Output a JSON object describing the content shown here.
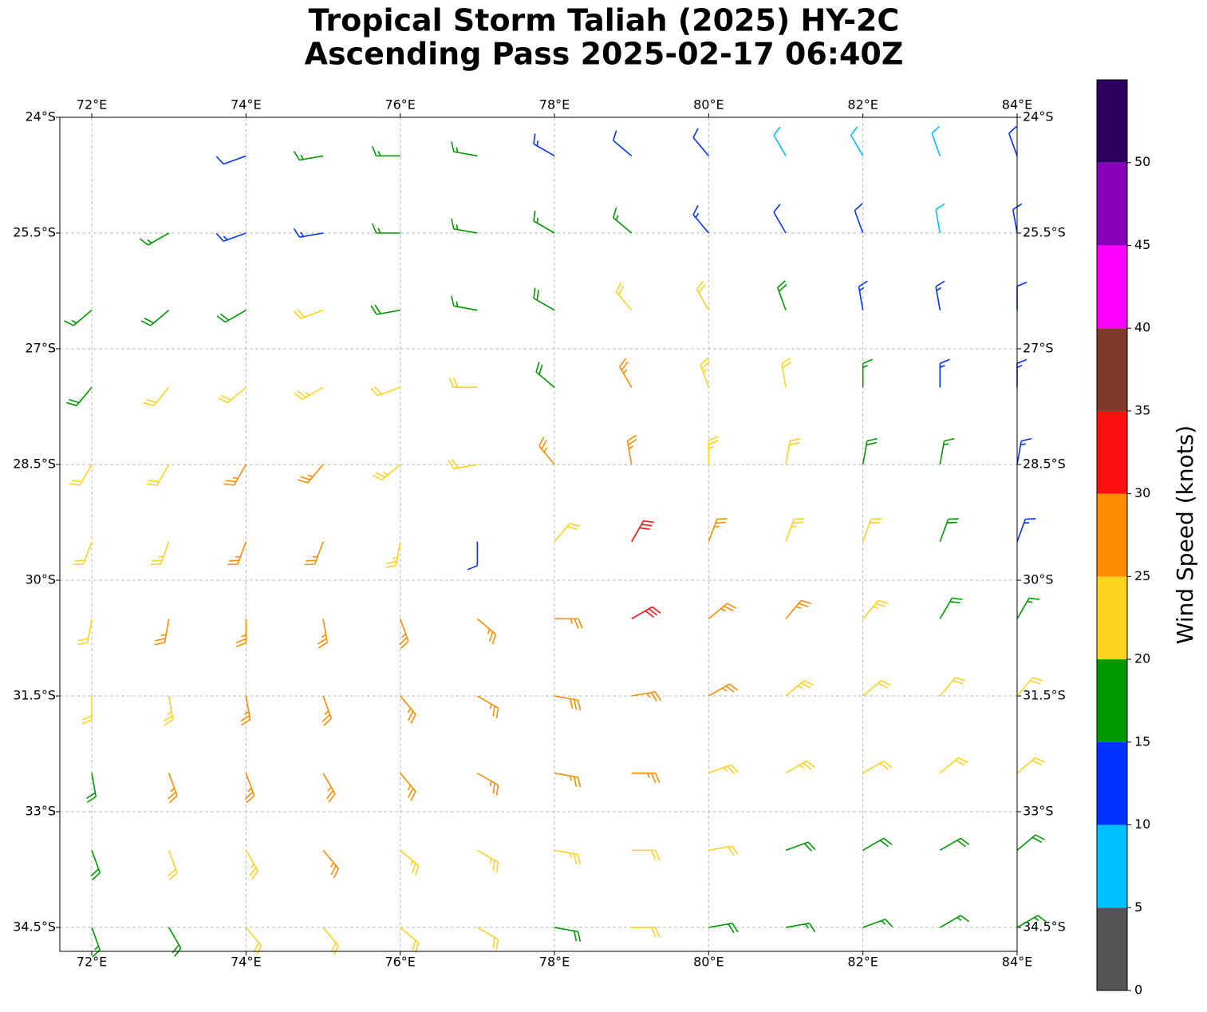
{
  "chart_data": {
    "type": "barbs",
    "title": [
      "Tropical Storm Taliah (2025) HY-2C",
      "Ascending Pass 2025-02-17 06:40Z"
    ],
    "xlim": [
      71.586,
      84
    ],
    "ylim": [
      -34.81,
      -24
    ],
    "xticks": [
      {
        "value": 72,
        "label": "72°E"
      },
      {
        "value": 74,
        "label": "74°E"
      },
      {
        "value": 76,
        "label": "76°E"
      },
      {
        "value": 78,
        "label": "78°E"
      },
      {
        "value": 80,
        "label": "80°E"
      },
      {
        "value": 82,
        "label": "82°E"
      },
      {
        "value": 84,
        "label": "84°E"
      }
    ],
    "yticks": [
      {
        "value": -24,
        "label": "24°S"
      },
      {
        "value": -25.5,
        "label": "25.5°S"
      },
      {
        "value": -27,
        "label": "27°S"
      },
      {
        "value": -28.5,
        "label": "28.5°S"
      },
      {
        "value": -30,
        "label": "30°S"
      },
      {
        "value": -31.5,
        "label": "31.5°S"
      },
      {
        "value": -33,
        "label": "33°S"
      },
      {
        "value": -34.5,
        "label": "34.5°S"
      }
    ],
    "grid": true,
    "lons": [
      72,
      73,
      74,
      75,
      76,
      77,
      78,
      79,
      80,
      81,
      82,
      83,
      84
    ],
    "lats": [
      -24.5,
      -25.5,
      -26.5,
      -27.5,
      -28.5,
      -29.5,
      -30.5,
      -31.5,
      -32.5,
      -33.5,
      -34.5
    ],
    "speed": [
      [
        null,
        null,
        12,
        17,
        17,
        17,
        13,
        12,
        11,
        8,
        8,
        8,
        12
      ],
      [
        null,
        17,
        13,
        13,
        16,
        17,
        17,
        16,
        13,
        12,
        12,
        9,
        12
      ],
      [
        17,
        18,
        18,
        21,
        18,
        17,
        18,
        22,
        22,
        18,
        14,
        13,
        12
      ],
      [
        18,
        21,
        22,
        23,
        22,
        21,
        19,
        26,
        24,
        21,
        17,
        14,
        13
      ],
      [
        21,
        22,
        26,
        26,
        23,
        21,
        26,
        27,
        24,
        22,
        18,
        16,
        13
      ],
      [
        21,
        23,
        26,
        26,
        24,
        12,
        22,
        31,
        27,
        24,
        21,
        18,
        14
      ],
      [
        22,
        25,
        26,
        27,
        26,
        26,
        27,
        31,
        27,
        26,
        23,
        19,
        17
      ],
      [
        21,
        24,
        26,
        27,
        27,
        27,
        28,
        27,
        26,
        24,
        22,
        21,
        21
      ],
      [
        19,
        25,
        26,
        26,
        27,
        27,
        27,
        26,
        24,
        23,
        22,
        21,
        21
      ],
      [
        18,
        22,
        24,
        25,
        24,
        23,
        23,
        22,
        21,
        19,
        18,
        18,
        18
      ],
      [
        17,
        19,
        22,
        22,
        21,
        21,
        18,
        21,
        18,
        17,
        17,
        17,
        16
      ]
    ],
    "direction": [
      [
        240,
        250,
        250,
        260,
        270,
        280,
        300,
        310,
        320,
        330,
        330,
        340,
        340
      ],
      [
        230,
        240,
        250,
        260,
        270,
        280,
        300,
        310,
        320,
        330,
        340,
        350,
        350
      ],
      [
        230,
        230,
        240,
        250,
        260,
        280,
        300,
        320,
        330,
        340,
        350,
        350,
        0
      ],
      [
        220,
        220,
        230,
        240,
        250,
        270,
        310,
        330,
        340,
        350,
        0,
        0,
        0
      ],
      [
        210,
        210,
        210,
        220,
        230,
        260,
        320,
        350,
        0,
        10,
        10,
        10,
        10
      ],
      [
        200,
        200,
        200,
        200,
        190,
        180,
        40,
        30,
        20,
        20,
        20,
        20,
        20
      ],
      [
        190,
        190,
        180,
        170,
        160,
        130,
        90,
        60,
        50,
        40,
        40,
        30,
        30
      ],
      [
        180,
        170,
        170,
        160,
        140,
        120,
        100,
        80,
        60,
        50,
        50,
        40,
        40
      ],
      [
        170,
        160,
        160,
        150,
        140,
        120,
        100,
        90,
        70,
        60,
        60,
        50,
        50
      ],
      [
        160,
        160,
        150,
        140,
        130,
        120,
        100,
        90,
        80,
        70,
        60,
        60,
        50
      ],
      [
        160,
        150,
        140,
        140,
        130,
        120,
        100,
        90,
        80,
        80,
        70,
        60,
        60
      ]
    ],
    "colorbar": {
      "label": "Wind Speed (knots)",
      "levels": [
        0,
        5,
        10,
        15,
        20,
        25,
        30,
        35,
        40,
        45,
        50,
        55
      ],
      "colors": [
        "#555555",
        "#00bfff",
        "#0033ff",
        "#009900",
        "#ffd21f",
        "#ff8c00",
        "#ff1010",
        "#7f3b2a",
        "#ff00ff",
        "#8800bb",
        "#2d0060"
      ],
      "lim": [
        0,
        55
      ],
      "ticks": [
        0,
        5,
        10,
        15,
        20,
        25,
        30,
        35,
        40,
        45,
        50
      ]
    }
  }
}
